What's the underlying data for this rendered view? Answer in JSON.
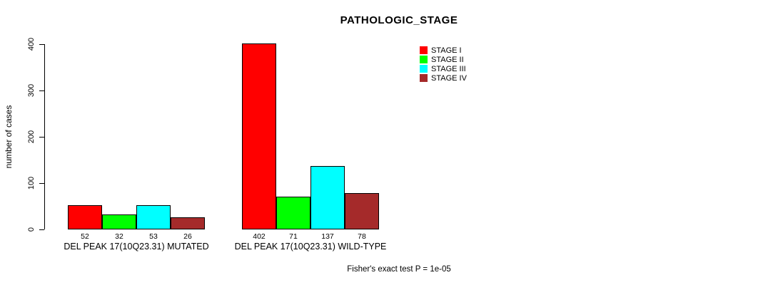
{
  "chart": {
    "title": "PATHOLOGIC_STAGE",
    "ylabel": "number of cases",
    "footer": "Fisher's exact test P = 1e-05"
  },
  "chart_data": {
    "type": "bar",
    "grouped": true,
    "title": "PATHOLOGIC_STAGE",
    "xlabel": "",
    "ylabel": "number of cases",
    "categories": [
      "DEL PEAK 17(10Q23.31) MUTATED",
      "DEL PEAK 17(10Q23.31) WILD-TYPE"
    ],
    "series": [
      {
        "name": "STAGE I",
        "color": "#ff0000",
        "values": [
          52,
          402
        ]
      },
      {
        "name": "STAGE II",
        "color": "#00ff00",
        "values": [
          32,
          71
        ]
      },
      {
        "name": "STAGE III",
        "color": "#00ffff",
        "values": [
          53,
          137
        ]
      },
      {
        "name": "STAGE IV",
        "color": "#a52a2a",
        "values": [
          26,
          78
        ]
      }
    ],
    "yticks": [
      0,
      100,
      200,
      300,
      400
    ],
    "ylim": [
      0,
      400
    ],
    "grid": false,
    "legend_position": "top-right",
    "bar_value_labels_shown": true,
    "annotation": "Fisher's exact test P = 1e-05"
  }
}
